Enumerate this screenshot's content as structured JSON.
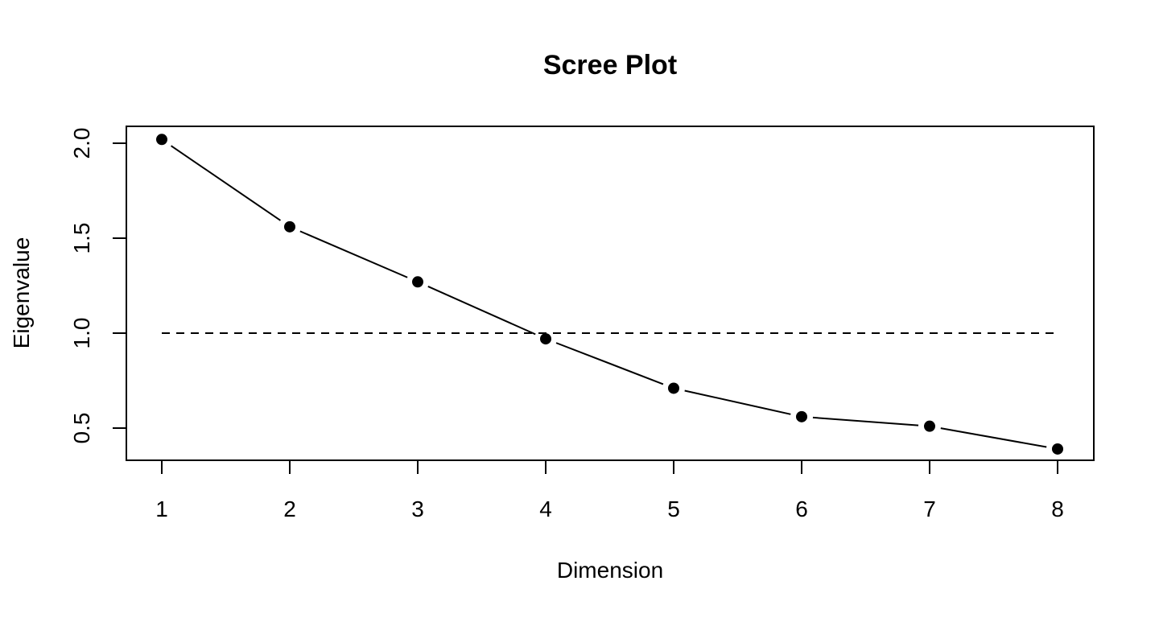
{
  "chart_data": {
    "type": "line",
    "title": "Scree Plot",
    "xlabel": "Dimension",
    "ylabel": "Eigenvalue",
    "x": [
      1,
      2,
      3,
      4,
      5,
      6,
      7,
      8
    ],
    "series": [
      {
        "values": [
          2.02,
          1.56,
          1.27,
          0.97,
          0.71,
          0.56,
          0.51,
          0.39
        ]
      }
    ],
    "reference_line": {
      "y": 1.0,
      "style": "dashed"
    },
    "xlim": [
      1,
      8
    ],
    "ylim": [
      0.35,
      2.05
    ],
    "x_ticks": [
      1,
      2,
      3,
      4,
      5,
      6,
      7,
      8
    ],
    "y_ticks": [
      {
        "value": 0.5,
        "label": "0.5"
      },
      {
        "value": 1.0,
        "label": "1.0"
      },
      {
        "value": 1.5,
        "label": "1.5"
      },
      {
        "value": 2.0,
        "label": "2.0"
      }
    ],
    "grid": false,
    "legend": "none",
    "colors": {
      "line": "#000000",
      "points": "#000000",
      "background": "#ffffff"
    }
  }
}
